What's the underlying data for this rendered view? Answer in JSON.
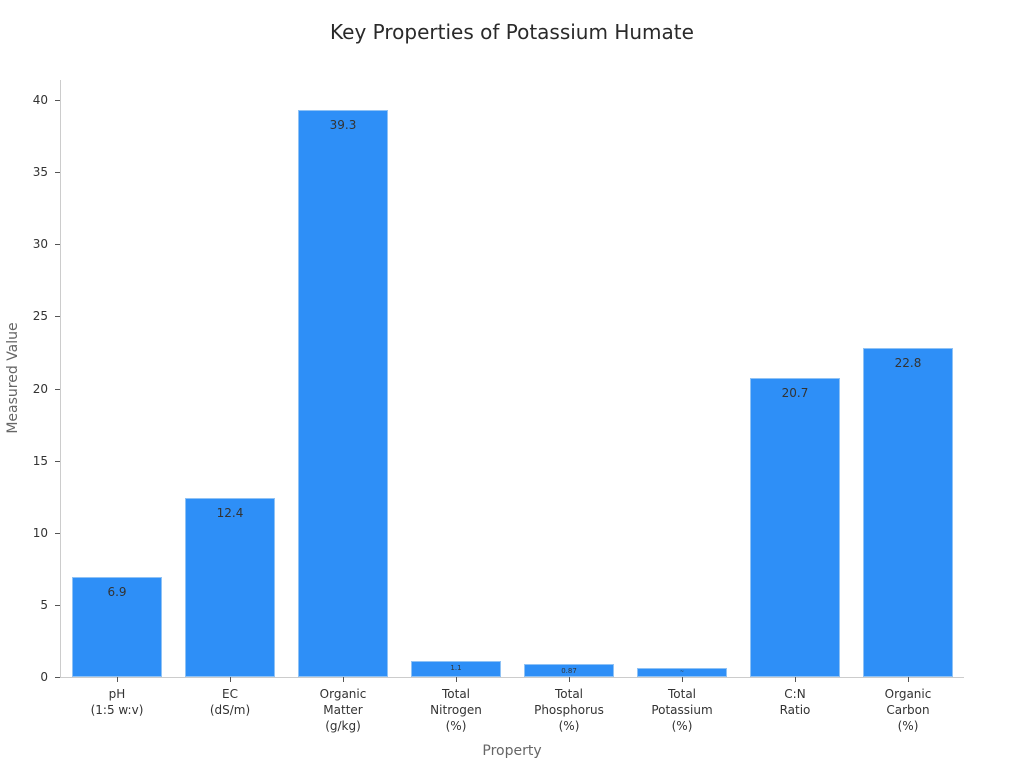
{
  "chart_data": {
    "type": "bar",
    "title": "Key Properties of Potassium Humate",
    "xlabel": "Property",
    "ylabel": "Measured Value",
    "ylim": [
      0,
      41.3
    ],
    "yticks": [
      0,
      5,
      10,
      15,
      20,
      25,
      30,
      35,
      40
    ],
    "grid": false,
    "legend": null,
    "categories": [
      "pH\n(1:5 w:v)",
      "EC\n(dS/m)",
      "Organic\nMatter\n(g/kg)",
      "Total\nNitrogen\n(%)",
      "Total\nPhosphorus\n(%)",
      "Total\nPotassium\n(%)",
      "C:N\nRatio",
      "Organic\nCarbon\n(%)"
    ],
    "values": [
      6.9,
      12.4,
      39.3,
      1.1,
      0.87,
      0.6,
      20.7,
      22.8
    ],
    "value_labels": [
      "6.9",
      "12.4",
      "39.3",
      "1.1",
      "0.87",
      "~",
      "20.7",
      "22.8"
    ],
    "bar_color": "#2e8ff7"
  }
}
